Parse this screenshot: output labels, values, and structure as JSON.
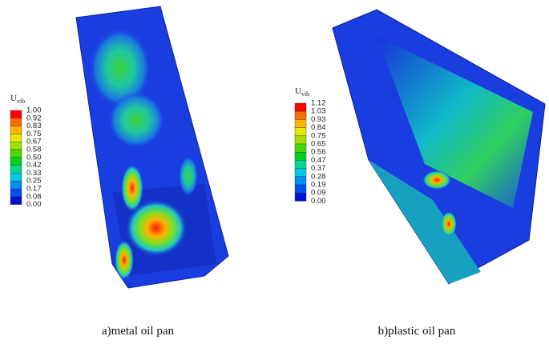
{
  "panels": [
    {
      "legend": {
        "title": {
          "main": "U",
          "sub": "vib"
        },
        "labels": [
          "1.00",
          "0.92",
          "0.83",
          "0.75",
          "0.67",
          "0.58",
          "0.50",
          "0.42",
          "0.33",
          "0.25",
          "0.17",
          "0.08",
          "0.00"
        ]
      },
      "caption": "a)metal oil pan"
    },
    {
      "legend": {
        "title": {
          "main": "U",
          "sub": "vib"
        },
        "labels": [
          "1.12",
          "1.03",
          "0.93",
          "0.84",
          "0.75",
          "0.65",
          "0.56",
          "0.47",
          "0.37",
          "0.28",
          "0.19",
          "0.09",
          "0.00"
        ]
      },
      "caption": "b)plastic oil pan"
    }
  ]
}
